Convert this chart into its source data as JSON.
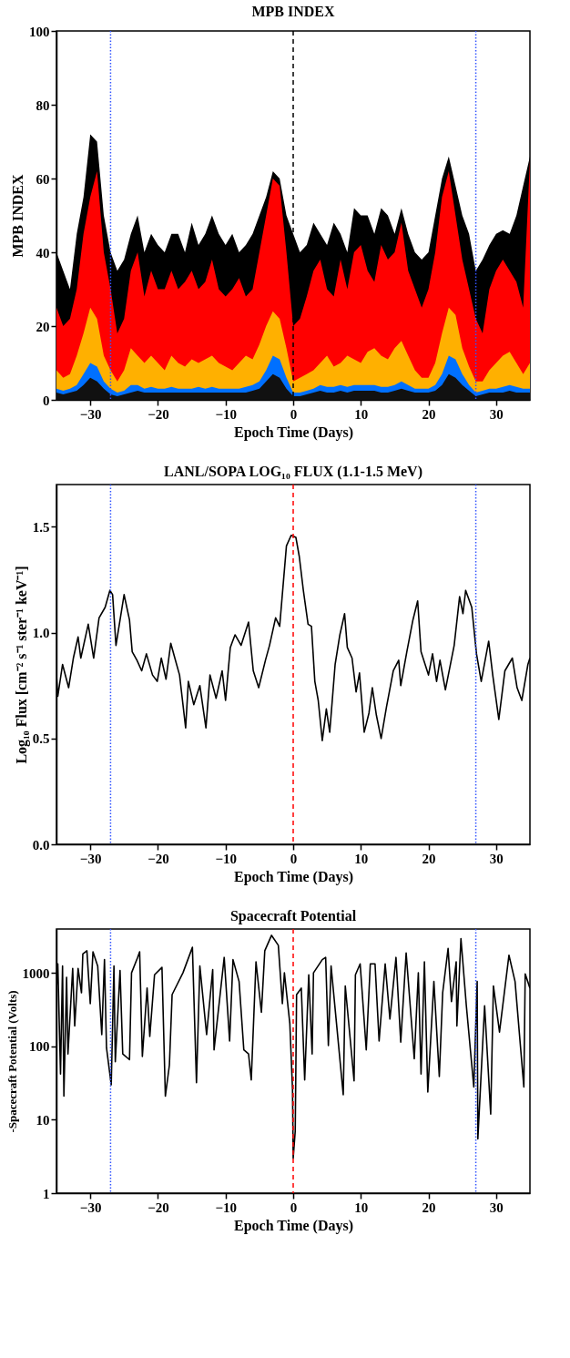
{
  "chart_data": [
    {
      "type": "area",
      "title": "MPB INDEX",
      "xlabel": "Epoch Time (Days)",
      "ylabel": "MPB INDEX",
      "xlim": [
        -35,
        35
      ],
      "xticks": [
        -30,
        -20,
        -10,
        0,
        10,
        20,
        30
      ],
      "ylim": [
        0,
        100
      ],
      "yticks": [
        0,
        20,
        40,
        60,
        80,
        100
      ],
      "x": [
        -35,
        -34,
        -33,
        -32,
        -31,
        -30,
        -29,
        -28,
        -27,
        -26,
        -25,
        -24,
        -23,
        -22,
        -21,
        -20,
        -19,
        -18,
        -17,
        -16,
        -15,
        -14,
        -13,
        -12,
        -11,
        -10,
        -9,
        -8,
        -7,
        -6,
        -5,
        -4,
        -3,
        -2,
        -1,
        0,
        1,
        2,
        3,
        4,
        5,
        6,
        7,
        8,
        9,
        10,
        11,
        12,
        13,
        14,
        15,
        16,
        17,
        18,
        19,
        20,
        21,
        22,
        23,
        24,
        25,
        26,
        27,
        28,
        29,
        30,
        31,
        32,
        33,
        34,
        35
      ],
      "series": [
        {
          "color": "#000000",
          "values": [
            40,
            35,
            30,
            45,
            55,
            72,
            70,
            50,
            40,
            35,
            38,
            45,
            50,
            40,
            45,
            42,
            40,
            45,
            45,
            40,
            48,
            42,
            45,
            50,
            45,
            42,
            45,
            40,
            42,
            45,
            50,
            55,
            62,
            60,
            50,
            45,
            40,
            42,
            48,
            45,
            42,
            48,
            45,
            40,
            52,
            50,
            50,
            45,
            52,
            50,
            45,
            52,
            45,
            40,
            38,
            40,
            50,
            60,
            66,
            58,
            50,
            45,
            35,
            38,
            42,
            45,
            46,
            45,
            50,
            58,
            66
          ]
        },
        {
          "color": "#ff0000",
          "values": [
            25,
            20,
            22,
            30,
            45,
            55,
            62,
            40,
            30,
            18,
            22,
            35,
            40,
            28,
            35,
            30,
            30,
            35,
            30,
            32,
            35,
            30,
            32,
            38,
            30,
            28,
            30,
            33,
            28,
            30,
            40,
            50,
            60,
            58,
            40,
            20,
            22,
            28,
            35,
            38,
            30,
            28,
            38,
            30,
            40,
            42,
            35,
            32,
            42,
            38,
            40,
            48,
            35,
            30,
            25,
            30,
            40,
            55,
            62,
            50,
            38,
            30,
            22,
            18,
            30,
            35,
            38,
            35,
            32,
            25,
            65
          ]
        },
        {
          "color": "#ffb000",
          "values": [
            8,
            6,
            7,
            12,
            18,
            25,
            22,
            12,
            8,
            5,
            8,
            14,
            12,
            10,
            12,
            10,
            8,
            12,
            10,
            9,
            11,
            10,
            11,
            12,
            10,
            9,
            8,
            10,
            12,
            11,
            15,
            20,
            24,
            22,
            14,
            5,
            6,
            7,
            8,
            10,
            12,
            9,
            10,
            12,
            11,
            10,
            13,
            14,
            12,
            11,
            14,
            16,
            12,
            8,
            6,
            6,
            10,
            18,
            25,
            23,
            14,
            9,
            5,
            5,
            8,
            10,
            12,
            13,
            10,
            7,
            10
          ]
        },
        {
          "color": "#0070ff",
          "values": [
            3,
            2.5,
            3,
            4,
            7,
            10,
            9,
            5,
            3,
            2,
            2.5,
            4,
            4,
            3,
            3.5,
            3,
            3,
            3.5,
            3,
            3,
            3,
            3.5,
            3,
            3.5,
            3,
            3,
            3,
            3,
            3.5,
            4,
            5,
            8,
            12,
            11,
            6,
            2,
            2,
            2.5,
            3,
            4,
            3.5,
            3.5,
            4,
            3.5,
            4,
            4,
            4,
            4,
            3.5,
            3.5,
            4,
            5,
            4,
            3,
            3,
            3,
            4,
            7,
            12,
            11,
            7,
            4,
            2,
            2.5,
            3,
            3,
            3.5,
            4,
            3.5,
            3,
            3
          ]
        },
        {
          "color": "#111111",
          "values": [
            2,
            1.5,
            2,
            2.5,
            4,
            6,
            5,
            3,
            1.5,
            1,
            1.5,
            2,
            2.5,
            2,
            2,
            2,
            2,
            2,
            2,
            2,
            2,
            2,
            2,
            2,
            2,
            2,
            2,
            2,
            2,
            2.5,
            3,
            5,
            7,
            6,
            3,
            1,
            1,
            1.5,
            2,
            2.5,
            2,
            2,
            2.5,
            2,
            2.5,
            2.5,
            2.5,
            2.5,
            2,
            2,
            2.5,
            3,
            2.5,
            2,
            2,
            2,
            2.5,
            4,
            7,
            6,
            4,
            2.5,
            1,
            1.5,
            2,
            2,
            2,
            2.5,
            2,
            2,
            2
          ]
        }
      ],
      "ref_lines": [
        {
          "axis": "x",
          "value": -27,
          "color": "#3355ff",
          "line_style": "dotted"
        },
        {
          "axis": "x",
          "value": 0,
          "color": "#000000",
          "line_style": "dashed"
        },
        {
          "axis": "x",
          "value": 27,
          "color": "#3355ff",
          "line_style": "dotted"
        }
      ]
    },
    {
      "type": "line",
      "title": "LANL/SOPA LOG₁₀ FLUX (1.1-1.5 MeV)",
      "xlabel": "Epoch Time (Days)",
      "ylabel": "Log₁₀ Flux [cm⁻² s⁻¹ ster⁻¹ keV⁻¹]",
      "xlim": [
        -35,
        35
      ],
      "xticks": [
        -30,
        -20,
        -10,
        0,
        10,
        20,
        30
      ],
      "ylim": [
        0,
        1.7
      ],
      "yticks": [
        {
          "value": 0,
          "label": "0.0"
        },
        {
          "value": 0.5,
          "label": "0.5"
        },
        {
          "value": 1,
          "label": "1.0"
        },
        {
          "value": 1.5,
          "label": "1.5"
        }
      ],
      "x": [
        -35,
        -34.8,
        -34.1,
        -33.2,
        -32.5,
        -31.8,
        -31.4,
        -30.3,
        -29.5,
        -28.7,
        -27.8,
        -27.1,
        -26.7,
        -26.2,
        -25,
        -24.2,
        -23.8,
        -23.1,
        -22.4,
        -21.7,
        -20.8,
        -20.1,
        -19.5,
        -18.8,
        -18.1,
        -17.5,
        -16.8,
        -15.9,
        -15.5,
        -14.7,
        -13.8,
        -12.9,
        -12.3,
        -11.4,
        -10.5,
        -10,
        -9.3,
        -8.6,
        -7.7,
        -6.6,
        -5.9,
        -5.1,
        -4.1,
        -3.5,
        -2.6,
        -2,
        -1,
        -0.3,
        0.4,
        0.9,
        1.5,
        2.2,
        2.7,
        3.2,
        3.7,
        4.3,
        4.9,
        5.4,
        6.2,
        6.9,
        7.6,
        8,
        8.7,
        9.3,
        9.8,
        10.5,
        11.2,
        11.7,
        12.3,
        13,
        13.8,
        14.8,
        15.6,
        15.9,
        16.8,
        17.7,
        18.4,
        18.9,
        20,
        20.6,
        21.2,
        21.7,
        22.5,
        23.8,
        24.6,
        25.1,
        25.5,
        26.4,
        27.1,
        27.8,
        28.9,
        29.5,
        30.4,
        31.3,
        32.4,
        33.1,
        33.8,
        34.7,
        35
      ],
      "series": [
        {
          "color": "#000000",
          "values": [
            0.8,
            0.7,
            0.85,
            0.74,
            0.88,
            0.98,
            0.88,
            1.04,
            0.88,
            1.07,
            1.12,
            1.2,
            1.18,
            0.94,
            1.18,
            1.06,
            0.91,
            0.87,
            0.82,
            0.9,
            0.8,
            0.77,
            0.88,
            0.78,
            0.95,
            0.88,
            0.8,
            0.55,
            0.77,
            0.66,
            0.75,
            0.55,
            0.8,
            0.69,
            0.82,
            0.68,
            0.93,
            0.99,
            0.94,
            1.05,
            0.82,
            0.74,
            0.87,
            0.94,
            1.07,
            1.03,
            1.41,
            1.46,
            1.45,
            1.36,
            1.2,
            1.04,
            1.03,
            0.77,
            0.68,
            0.49,
            0.64,
            0.53,
            0.85,
            0.99,
            1.09,
            0.93,
            0.88,
            0.72,
            0.81,
            0.53,
            0.62,
            0.74,
            0.61,
            0.5,
            0.65,
            0.82,
            0.87,
            0.75,
            0.91,
            1.06,
            1.15,
            0.91,
            0.8,
            0.9,
            0.77,
            0.87,
            0.73,
            0.94,
            1.17,
            1.09,
            1.2,
            1.12,
            0.9,
            0.77,
            0.96,
            0.8,
            0.59,
            0.82,
            0.88,
            0.74,
            0.68,
            0.85,
            0.88
          ]
        }
      ],
      "ref_lines": [
        {
          "axis": "x",
          "value": -27,
          "color": "#3355ff",
          "line_style": "dotted"
        },
        {
          "axis": "x",
          "value": 0,
          "color": "#ff0000",
          "line_style": "dashed"
        },
        {
          "axis": "x",
          "value": 27,
          "color": "#3355ff",
          "line_style": "dotted"
        }
      ]
    },
    {
      "type": "line",
      "title": "Spacecraft Potential",
      "xlabel": "Epoch Time (Days)",
      "ylabel": "-Spacecraft Potential (Volts)",
      "log": "y",
      "xlim": [
        -35,
        35
      ],
      "xticks": [
        -30,
        -20,
        -10,
        0,
        10,
        20,
        30
      ],
      "ylim": [
        1,
        4000
      ],
      "yticks": [
        1,
        10,
        100,
        {
          "value": 1000,
          "label": "1000"
        }
      ],
      "x": [
        -35,
        -34.8,
        -34.4,
        -34.1,
        -33.9,
        -33.5,
        -33.3,
        -32.6,
        -32.3,
        -31.8,
        -31.3,
        -31.1,
        -30.5,
        -30,
        -29.6,
        -28.9,
        -28.3,
        -27.9,
        -27.6,
        -26.9,
        -26.5,
        -26.3,
        -25.6,
        -25.2,
        -24.2,
        -23.9,
        -23,
        -22.7,
        -22.3,
        -21.6,
        -21.2,
        -20.5,
        -19.4,
        -18.9,
        -18.3,
        -17.9,
        -16.3,
        -14.9,
        -14.3,
        -13.8,
        -12.8,
        -11.9,
        -11.7,
        -10.2,
        -9.4,
        -8.9,
        -8,
        -7.3,
        -6.6,
        -6.2,
        -5.5,
        -4.7,
        -4.2,
        -3.2,
        -2.2,
        -1.6,
        -1.3,
        -0.5,
        -0.1,
        0,
        0.3,
        0.5,
        1.2,
        1.7,
        2.3,
        2.8,
        3,
        4.3,
        4.8,
        5.2,
        5.6,
        7.4,
        7.7,
        9,
        9.2,
        9.9,
        10.8,
        11.4,
        12.1,
        12.7,
        13.6,
        14.3,
        15.2,
        15.9,
        16.7,
        17.9,
        18.5,
        18.9,
        19.4,
        19.9,
        20.8,
        21.6,
        22.1,
        22.9,
        23.4,
        24.1,
        24.2,
        24.8,
        25.6,
        26.7,
        27.2,
        27.3,
        28.3,
        29.2,
        29.6,
        30.5,
        31.9,
        32.8,
        34.1,
        34.3,
        35
      ],
      "series": [
        {
          "color": "#000000",
          "values": [
            600,
            1340,
            42,
            1250,
            21,
            880,
            79,
            1160,
            190,
            1160,
            540,
            1830,
            2020,
            385,
            1950,
            1250,
            145,
            1530,
            96,
            30,
            1250,
            62,
            1090,
            79,
            66,
            1010,
            1640,
            1950,
            73,
            625,
            137,
            950,
            1200,
            21,
            56,
            510,
            1010,
            2250,
            32,
            1250,
            145,
            1120,
            90,
            1640,
            119,
            1530,
            770,
            90,
            79,
            35,
            1430,
            292,
            2020,
            3280,
            2400,
            385,
            1010,
            207,
            26,
            3,
            7,
            510,
            625,
            35,
            950,
            79,
            1010,
            1530,
            1640,
            103,
            1250,
            22,
            670,
            34,
            950,
            1340,
            90,
            1340,
            1340,
            119,
            1340,
            237,
            1640,
            115,
            1890,
            68,
            1010,
            42,
            1430,
            24,
            770,
            39,
            540,
            2170,
            410,
            1430,
            190,
            2960,
            360,
            28,
            770,
            5.5,
            360,
            12,
            670,
            157,
            1760,
            770,
            28,
            980,
            625
          ]
        }
      ],
      "ref_lines": [
        {
          "axis": "x",
          "value": -27,
          "color": "#3355ff",
          "line_style": "dotted"
        },
        {
          "axis": "x",
          "value": 0,
          "color": "#ff0000",
          "line_style": "dashed"
        },
        {
          "axis": "x",
          "value": 27,
          "color": "#3355ff",
          "line_style": "dotted"
        }
      ]
    }
  ]
}
